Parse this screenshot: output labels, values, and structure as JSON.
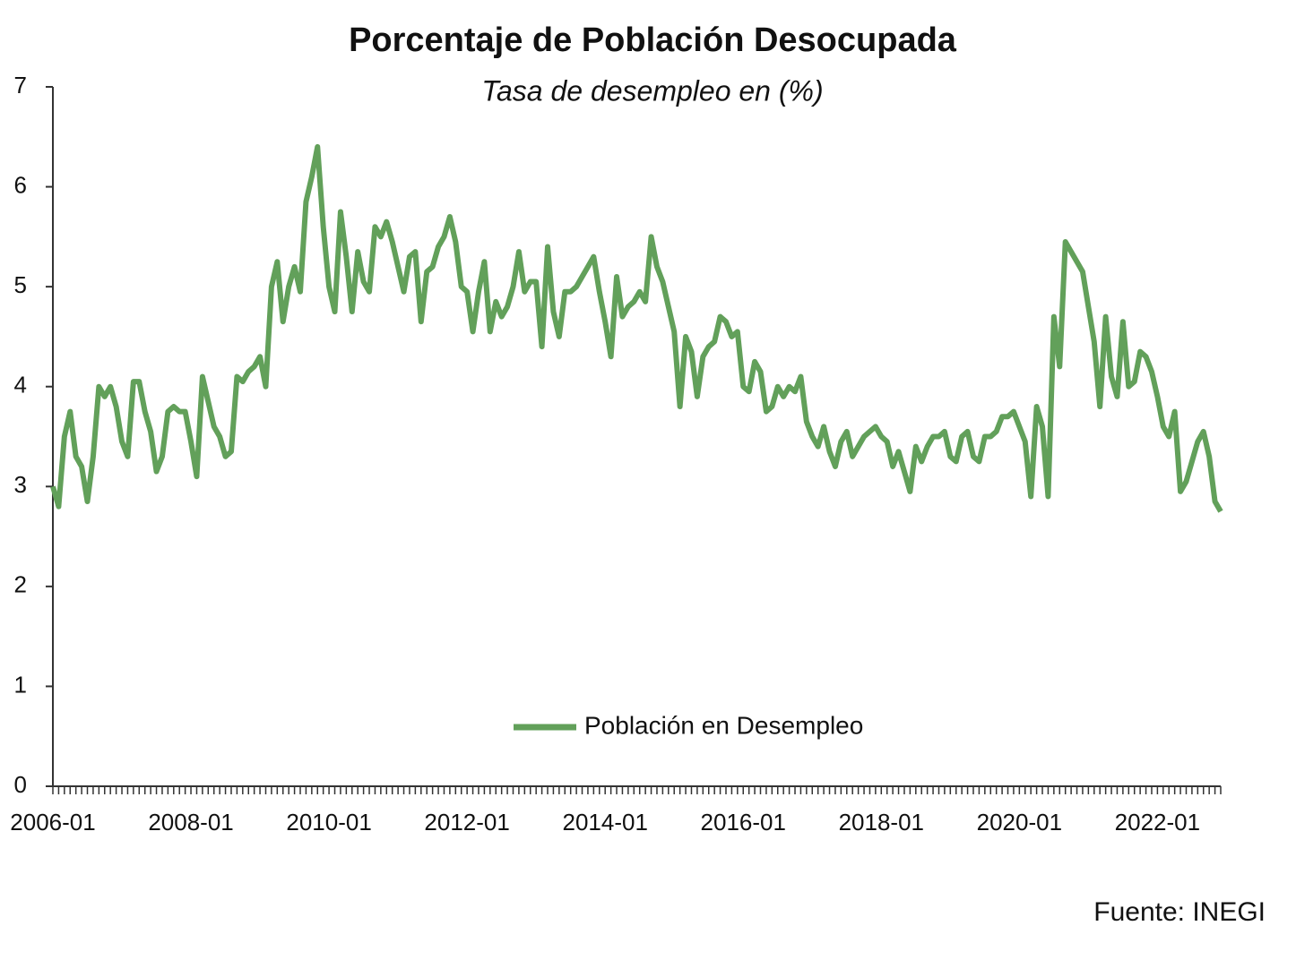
{
  "chart_data": {
    "type": "line",
    "title": "Porcentaje de Población Desocupada",
    "subtitle": "Tasa de desempleo en (%)",
    "source": "Fuente: INEGI",
    "categories": [
      "2006-01",
      null,
      null,
      null,
      null,
      null,
      null,
      null,
      null,
      null,
      null,
      null,
      null,
      null,
      null,
      null,
      null,
      null,
      null,
      null,
      null,
      null,
      null,
      null,
      "2008-01",
      null,
      null,
      null,
      null,
      null,
      null,
      null,
      null,
      null,
      null,
      null,
      null,
      null,
      null,
      null,
      null,
      null,
      null,
      null,
      null,
      null,
      null,
      null,
      "2010-01",
      null,
      null,
      null,
      null,
      null,
      null,
      null,
      null,
      null,
      null,
      null,
      null,
      null,
      null,
      null,
      null,
      null,
      null,
      null,
      null,
      null,
      null,
      null,
      "2012-01",
      null,
      null,
      null,
      null,
      null,
      null,
      null,
      null,
      null,
      null,
      null,
      null,
      null,
      null,
      null,
      null,
      null,
      null,
      null,
      null,
      null,
      null,
      null,
      "2014-01",
      null,
      null,
      null,
      null,
      null,
      null,
      null,
      null,
      null,
      null,
      null,
      null,
      null,
      null,
      null,
      null,
      null,
      null,
      null,
      null,
      null,
      null,
      null,
      "2016-01",
      null,
      null,
      null,
      null,
      null,
      null,
      null,
      null,
      null,
      null,
      null,
      null,
      null,
      null,
      null,
      null,
      null,
      null,
      null,
      null,
      null,
      null,
      null,
      "2018-01",
      null,
      null,
      null,
      null,
      null,
      null,
      null,
      null,
      null,
      null,
      null,
      null,
      null,
      null,
      null,
      null,
      null,
      null,
      null,
      null,
      null,
      null,
      null,
      "2020-01",
      null,
      null,
      null,
      null,
      null,
      null,
      null,
      null,
      null,
      null,
      null,
      null,
      null,
      null,
      null,
      null,
      null,
      null,
      null,
      null,
      null,
      null,
      null,
      "2022-01",
      null,
      null,
      null,
      null,
      null,
      null,
      null,
      null,
      null,
      null,
      null
    ],
    "series": [
      {
        "name": "Población en Desempleo",
        "color": "#62a05a",
        "values": [
          3.0,
          2.8,
          3.5,
          3.75,
          3.3,
          3.2,
          2.85,
          3.3,
          4.0,
          3.9,
          4.0,
          3.8,
          3.45,
          3.3,
          4.05,
          4.05,
          3.75,
          3.55,
          3.15,
          3.3,
          3.75,
          3.8,
          3.75,
          3.75,
          3.45,
          3.1,
          4.1,
          3.85,
          3.6,
          3.5,
          3.3,
          3.35,
          4.1,
          4.05,
          4.15,
          4.2,
          4.3,
          4.0,
          5.0,
          5.25,
          4.65,
          5.0,
          5.2,
          4.95,
          5.85,
          6.1,
          6.4,
          5.6,
          5.0,
          4.75,
          5.75,
          5.3,
          4.75,
          5.35,
          5.05,
          4.95,
          5.6,
          5.5,
          5.65,
          5.45,
          5.2,
          4.95,
          5.3,
          5.35,
          4.65,
          5.15,
          5.2,
          5.4,
          5.5,
          5.7,
          5.45,
          5.0,
          4.95,
          4.55,
          4.95,
          5.25,
          4.55,
          4.85,
          4.7,
          4.8,
          5.0,
          5.35,
          4.95,
          5.05,
          5.05,
          4.4,
          5.4,
          4.75,
          4.5,
          4.95,
          4.95,
          5.0,
          5.1,
          5.2,
          5.3,
          4.95,
          4.65,
          4.3,
          5.1,
          4.7,
          4.8,
          4.85,
          4.95,
          4.85,
          5.5,
          5.2,
          5.05,
          4.8,
          4.55,
          3.8,
          4.5,
          4.35,
          3.9,
          4.3,
          4.4,
          4.45,
          4.7,
          4.65,
          4.5,
          4.55,
          4.0,
          3.95,
          4.25,
          4.15,
          3.75,
          3.8,
          4.0,
          3.9,
          4.0,
          3.95,
          4.1,
          3.65,
          3.5,
          3.4,
          3.6,
          3.35,
          3.2,
          3.45,
          3.55,
          3.3,
          3.4,
          3.5,
          3.55,
          3.6,
          3.5,
          3.45,
          3.2,
          3.35,
          3.15,
          2.95,
          3.4,
          3.25,
          3.4,
          3.5,
          3.5,
          3.55,
          3.3,
          3.25,
          3.5,
          3.55,
          3.3,
          3.25,
          3.5,
          3.5,
          3.55,
          3.7,
          3.7,
          3.75,
          3.6,
          3.45,
          2.9,
          3.8,
          3.6,
          2.9,
          4.7,
          4.2,
          5.45,
          5.35,
          5.25,
          5.15,
          4.8,
          4.45,
          3.8,
          4.7,
          4.1,
          3.9,
          4.65,
          4.0,
          4.05,
          4.35,
          4.3,
          4.15,
          3.9,
          3.6,
          3.5,
          3.75,
          2.95,
          3.05,
          3.25,
          3.45,
          3.55,
          3.3,
          2.85,
          2.75
        ]
      }
    ],
    "ylim": [
      0,
      7
    ],
    "yticks": [
      0,
      1,
      2,
      3,
      4,
      5,
      6,
      7
    ],
    "grid": false,
    "legend": "bottom"
  }
}
